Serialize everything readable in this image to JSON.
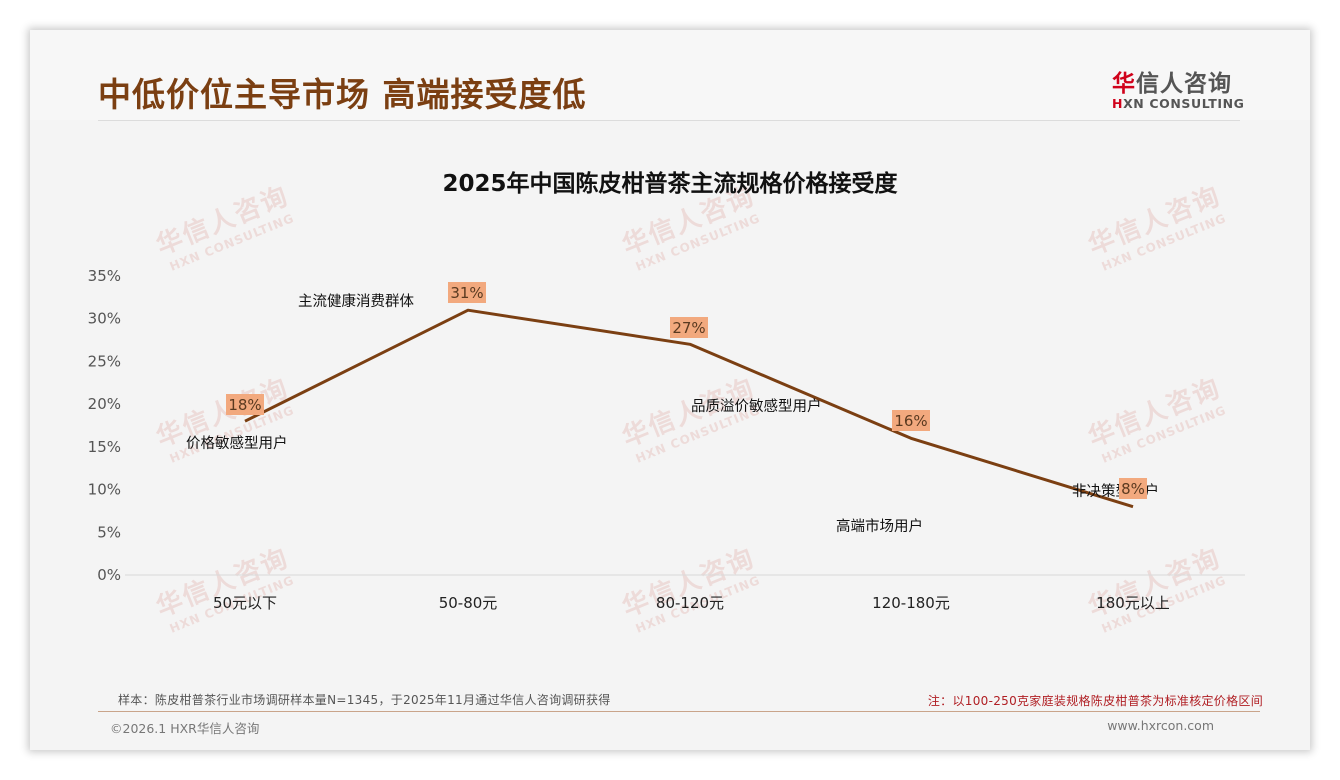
{
  "header": {
    "title": "中低价位主导市场 高端接受度低",
    "logo": {
      "cn_accent": "华",
      "cn_rest": "信人咨询",
      "en_accent": "H",
      "en_rest": "XN CONSULTING"
    }
  },
  "watermark": {
    "cn": "华信人咨询",
    "en": "HXN CONSULTING"
  },
  "colors": {
    "title": "#7b3f12",
    "line": "#7b3f12",
    "data_label_bg": "#f2a97e",
    "note_red": "#b01e23",
    "logo_red": "#d0021b"
  },
  "chart_data": {
    "type": "line",
    "title": "2025年中国陈皮柑普茶主流规格价格接受度",
    "xlabel": "",
    "ylabel": "",
    "categories": [
      "50元以下",
      "50-80元",
      "80-120元",
      "120-180元",
      "180元以上"
    ],
    "series": [
      {
        "name": "价格接受度",
        "values": [
          18,
          31,
          27,
          16,
          8
        ],
        "value_labels": [
          "18%",
          "31%",
          "27%",
          "16%",
          "8%"
        ],
        "segment_labels": [
          "价格敏感型用户",
          "主流健康消费群体",
          "品质溢价敏感型用户",
          "高端市场用户",
          "非决策型用户"
        ]
      }
    ],
    "ylim": [
      0,
      35
    ],
    "yticks": [
      "0%",
      "5%",
      "10%",
      "15%",
      "20%",
      "25%",
      "30%",
      "35%"
    ],
    "grid": false,
    "legend": "none"
  },
  "footer": {
    "sample_note": "样本：陈皮柑普茶行业市场调研样本量N=1345，于2025年11月通过华信人咨询调研获得",
    "price_note": "注：以100-250克家庭装规格陈皮柑普茶为标准核定价格区间",
    "copyright": "©2026.1 HXR华信人咨询",
    "website": "www.hxrcon.com"
  }
}
